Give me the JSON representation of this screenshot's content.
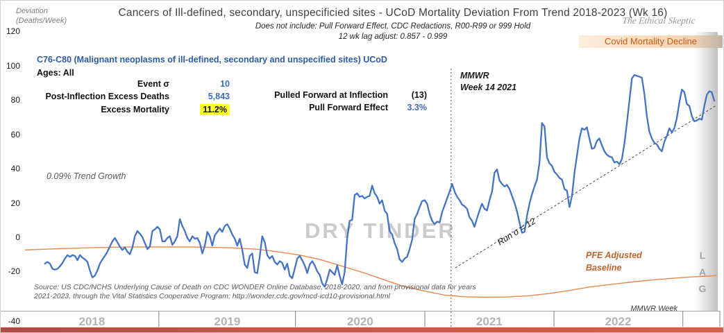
{
  "header": {
    "ylabel_line1": "Deviation",
    "ylabel_line2": "(Deaths/Week)",
    "title": "Cancers of Ill-defined,  secondary, unspecificied sites - UCoD Mortality Deviation From Trend  2018-2023 (Wk 16)",
    "subtitle1": "Does not include: Pull Forward Effect,  CDC Redactions, R00-R99 or 999 Hold",
    "subtitle2": "12 wk lag adjust: 0.857 - 0.999",
    "signature": "The Ethical Skeptic",
    "covid_banner": "Covid Mortality Decline"
  },
  "info_block": {
    "code_line": "C76-C80 (Malignant neoplasms of ill-defined, secondary and unspecified sites) UCoD",
    "ages_line": "Ages: All",
    "stats": [
      {
        "label": "Event σ",
        "value": "10"
      },
      {
        "label": "Post-Inflection Excess Deaths",
        "value": "5,843"
      },
      {
        "label": "Excess Mortality",
        "value": "11.2%"
      }
    ],
    "stats_right": [
      {
        "label": "Pulled Forward at Inflection",
        "value": "(13)"
      },
      {
        "label": "Pull Forward Effect",
        "value": "3.3%"
      }
    ]
  },
  "annotations": {
    "trend_growth": "0.09% Trend Growth",
    "dry_tinder": "DRY TINDER",
    "mmwr_line1": "MMWR",
    "mmwr_line2": "Week 14 2021",
    "run_sigma": "Run σ = 12",
    "pfe_line1": "PFE Adjusted",
    "pfe_line2": "Baseline",
    "lag_letters": [
      "L",
      "A",
      "G"
    ],
    "mmwr_week_axis": "MMWR Week"
  },
  "source_note": {
    "line1": "Source: US CDC/NCHS Underlying Cause of Death on CDC WONDER Online Database, 2018-2020, and from provisional data for years",
    "line2": "2021-2023, through the Vital Statistics Cooperative Program; http://wonder.cdc.gov/mcd-icd10-provisional.html"
  },
  "chart_data": {
    "type": "line",
    "title": "Cancers of Ill-defined, secondary, unspecificied sites - UCoD Mortality Deviation From Trend 2018-2023 (Wk 16)",
    "ylabel": "Deviation (Deaths/Week)",
    "ylim": [
      -40,
      120
    ],
    "yticks": [
      120,
      100,
      80,
      60,
      40,
      20,
      0,
      -20,
      -40
    ],
    "x_unit": "MMWR week index, 0 = 2018 week 1",
    "grid": false,
    "legend": "none",
    "year_tick_weeks": [
      53.6,
      108.3,
      160.1,
      211.8,
      263.4
    ],
    "year_labels": [
      {
        "label": "2018",
        "week": 26.8
      },
      {
        "label": "2019",
        "week": 81.0
      },
      {
        "label": "2020",
        "week": 134.2
      },
      {
        "label": "2021",
        "week": 185.9
      },
      {
        "label": "2022",
        "week": 237.5
      }
    ],
    "event_marker": {
      "week": 170.6,
      "label": "MMWR Week 14 2021"
    },
    "series": [
      {
        "name": "Weekly mortality deviation from trend",
        "color": "#4472C4",
        "start_week": 8,
        "step_weeks": 1,
        "values": [
          -15,
          -14,
          -15,
          -18,
          -18.5,
          -18,
          -16.5,
          -14.5,
          -12,
          -10,
          -11,
          -10,
          -10.5,
          -13,
          -10,
          -11.5,
          -12.5,
          -14,
          -19,
          -23,
          -22,
          -19,
          -15,
          -12.5,
          -10.5,
          -8,
          -5,
          -2,
          0,
          -2.5,
          -5,
          -7,
          -5.5,
          -8,
          -9.5,
          -5.5,
          1,
          4,
          2.5,
          0.5,
          -3,
          -6.5,
          -5,
          4,
          5,
          6.5,
          5,
          -2,
          -2,
          0,
          1,
          -4,
          -2,
          1,
          11,
          7,
          4,
          0,
          -2,
          1,
          -0.5,
          0,
          -3,
          -9,
          -4.5,
          3.5,
          1,
          -4.5,
          1.5,
          3.5,
          5.5,
          3.5,
          7,
          8,
          5.5,
          2,
          -0.5,
          -4.5,
          -0.5,
          -7,
          -15.5,
          -17.5,
          -10.5,
          -9,
          -20,
          -20.5,
          -11,
          1,
          -2.5,
          -10,
          -12,
          -10.5,
          -14,
          -15.5,
          -13.5,
          -14.5,
          -18.5,
          -15,
          -22,
          -23.5,
          -18,
          -12,
          -10.5,
          -13,
          -16,
          -20.5,
          -15.5,
          -13.5,
          -16,
          -19.5,
          -21.5,
          -26.5,
          -28.5,
          -24,
          -18.5,
          -20,
          -21.5,
          -16,
          -22,
          -27,
          -20,
          -0.5,
          10,
          10.5,
          25,
          26,
          24,
          24.5,
          23,
          24,
          24.5,
          30.5,
          26,
          24,
          20,
          22,
          16,
          14,
          4,
          2,
          -3,
          -6.5,
          -12.5,
          -14,
          -12,
          -11,
          -6.5,
          -1,
          11,
          14,
          18,
          21.5,
          22,
          20,
          14,
          10,
          8,
          9.5,
          9,
          15,
          19,
          23,
          27,
          31.5,
          27,
          24,
          22,
          19.5,
          18.5,
          17,
          12,
          10,
          6.5,
          11.5,
          16,
          20,
          17,
          16,
          22,
          27,
          38,
          40,
          33.5,
          31.5,
          30,
          31,
          28.5,
          24.5,
          20.5,
          15.5,
          9,
          3,
          3.5,
          13,
          20,
          25.5,
          30,
          34,
          44,
          67,
          65,
          47,
          43.5,
          42,
          38.5,
          37,
          35,
          34,
          28.5,
          27.5,
          18,
          24.5,
          38,
          48,
          58,
          64,
          63,
          64.5,
          58,
          52,
          52.5,
          56.5,
          58,
          54,
          50.5,
          48.5,
          47.5,
          47,
          44,
          44.5,
          43,
          46,
          55,
          67,
          80,
          93,
          95,
          94.5,
          94,
          93.5,
          84,
          71,
          62,
          58,
          55.5,
          54.5,
          52,
          50.5,
          56,
          59.5,
          64,
          61.5,
          64,
          70,
          79,
          86.5,
          85,
          78,
          77,
          71,
          68,
          68.5,
          69.5,
          69,
          77,
          83.5,
          85.5,
          85,
          80
        ]
      },
      {
        "name": "PFE Adjusted Baseline",
        "color": "#E8874D",
        "points": [
          [
            0,
            -7
          ],
          [
            13,
            -6.3
          ],
          [
            26,
            -5.7
          ],
          [
            40,
            -5.3
          ],
          [
            54,
            -5.2
          ],
          [
            68,
            -5.3
          ],
          [
            82,
            -5.7
          ],
          [
            93,
            -6.6
          ],
          [
            101,
            -8
          ],
          [
            110,
            -10
          ],
          [
            118,
            -12.5
          ],
          [
            126,
            -16
          ],
          [
            135,
            -20
          ],
          [
            143,
            -24
          ],
          [
            151,
            -28
          ],
          [
            160,
            -31
          ],
          [
            168,
            -33.3
          ],
          [
            176,
            -34.3
          ],
          [
            185,
            -34.6
          ],
          [
            193,
            -34.4
          ],
          [
            201,
            -33.8
          ],
          [
            210,
            -32.4
          ],
          [
            218,
            -30.6
          ],
          [
            226,
            -28.6
          ],
          [
            235,
            -27
          ],
          [
            243,
            -25.7
          ],
          [
            251,
            -24.5
          ],
          [
            260,
            -23.4
          ],
          [
            268,
            -22.6
          ],
          [
            277,
            -22
          ]
        ]
      },
      {
        "name": "Run trend (Run σ = 12)",
        "color": "#404040",
        "style": "dashed",
        "points": [
          [
            172.3,
            -17.4
          ],
          [
            277,
            77.5
          ]
        ]
      }
    ],
    "annotations_text": [
      "0.09% Trend Growth",
      "DRY TINDER",
      "Run σ = 12",
      "PFE Adjusted Baseline",
      "Covid Mortality Decline",
      "LAG"
    ],
    "colors": {
      "deviation_line": "#4472C4",
      "baseline_line": "#E8874D",
      "highlight": "#FFFF2E",
      "banner_text": "#C55A11",
      "bottom_bar": "#C5564B"
    }
  }
}
